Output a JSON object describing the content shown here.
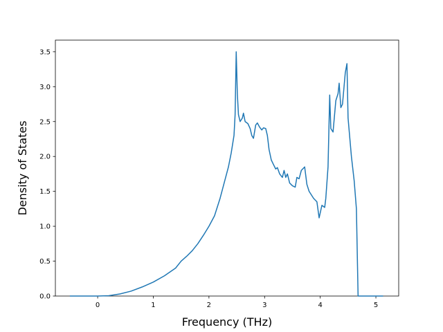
{
  "chart_data": {
    "type": "line",
    "xlabel": "Frequency (THz)",
    "ylabel": "Density of States",
    "color": "#1f77b4",
    "x": [
      -0.5,
      0,
      0.2,
      0.4,
      0.6,
      0.8,
      1.0,
      1.2,
      1.4,
      1.5,
      1.6,
      1.7,
      1.8,
      1.9,
      2.0,
      2.1,
      2.2,
      2.3,
      2.35,
      2.4,
      2.45,
      2.47,
      2.49,
      2.51,
      2.53,
      2.56,
      2.6,
      2.62,
      2.65,
      2.7,
      2.74,
      2.77,
      2.8,
      2.84,
      2.87,
      2.91,
      2.95,
      2.98,
      3.02,
      3.05,
      3.08,
      3.12,
      3.15,
      3.2,
      3.23,
      3.27,
      3.32,
      3.35,
      3.38,
      3.41,
      3.45,
      3.5,
      3.55,
      3.58,
      3.62,
      3.66,
      3.72,
      3.76,
      3.8,
      3.88,
      3.94,
      3.98,
      4.03,
      4.08,
      4.1,
      4.14,
      4.17,
      4.19,
      4.23,
      4.28,
      4.32,
      4.34,
      4.37,
      4.4,
      4.45,
      4.48,
      4.5,
      4.56,
      4.61,
      4.65,
      4.68,
      5.13
    ],
    "values": [
      0,
      0,
      0.005,
      0.03,
      0.07,
      0.13,
      0.2,
      0.29,
      0.4,
      0.5,
      0.57,
      0.65,
      0.75,
      0.87,
      1.0,
      1.15,
      1.4,
      1.7,
      1.85,
      2.05,
      2.3,
      2.6,
      3.5,
      2.9,
      2.6,
      2.5,
      2.55,
      2.62,
      2.5,
      2.47,
      2.4,
      2.3,
      2.26,
      2.45,
      2.48,
      2.42,
      2.38,
      2.41,
      2.4,
      2.3,
      2.1,
      1.95,
      1.9,
      1.82,
      1.84,
      1.75,
      1.7,
      1.8,
      1.7,
      1.75,
      1.62,
      1.58,
      1.56,
      1.7,
      1.68,
      1.8,
      1.85,
      1.6,
      1.5,
      1.4,
      1.35,
      1.12,
      1.3,
      1.27,
      1.4,
      1.85,
      2.88,
      2.4,
      2.35,
      2.8,
      2.9,
      3.05,
      2.7,
      2.75,
      3.2,
      3.33,
      2.55,
      2.0,
      1.65,
      1.25,
      0,
      0
    ],
    "xlim": [
      -0.76,
      5.41
    ],
    "ylim": [
      0,
      3.667
    ],
    "xticks": [
      0,
      1,
      2,
      3,
      4,
      5
    ],
    "yticks": [
      {
        "value": 0,
        "label": "0.0"
      },
      0.5,
      {
        "value": 1,
        "label": "1.0"
      },
      1.5,
      {
        "value": 2,
        "label": "2.0"
      },
      2.5,
      {
        "value": 3,
        "label": "3.0"
      },
      3.5
    ]
  }
}
